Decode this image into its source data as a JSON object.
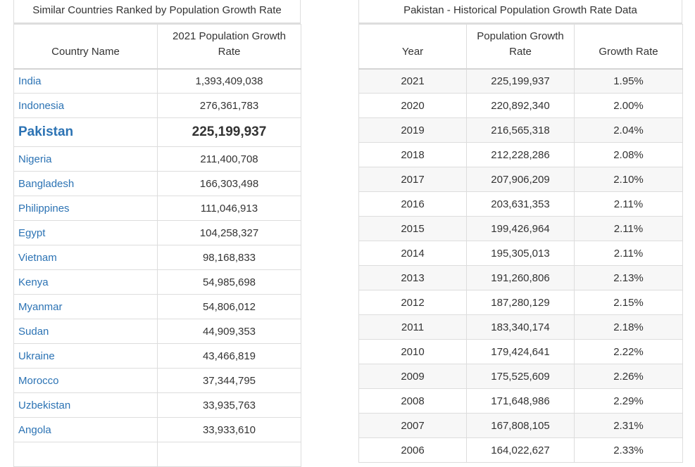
{
  "left_table": {
    "title": "Similar Countries Ranked by Population Growth Rate",
    "headers": [
      "Country Name",
      "2021 Population Growth Rate"
    ],
    "rows": [
      {
        "name": "India",
        "value": "1,393,409,038",
        "highlight": false
      },
      {
        "name": "Indonesia",
        "value": "276,361,783",
        "highlight": false
      },
      {
        "name": "Pakistan",
        "value": "225,199,937",
        "highlight": true
      },
      {
        "name": "Nigeria",
        "value": "211,400,708",
        "highlight": false
      },
      {
        "name": "Bangladesh",
        "value": "166,303,498",
        "highlight": false
      },
      {
        "name": "Philippines",
        "value": "111,046,913",
        "highlight": false
      },
      {
        "name": "Egypt",
        "value": "104,258,327",
        "highlight": false
      },
      {
        "name": "Vietnam",
        "value": "98,168,833",
        "highlight": false
      },
      {
        "name": "Kenya",
        "value": "54,985,698",
        "highlight": false
      },
      {
        "name": "Myanmar",
        "value": "54,806,012",
        "highlight": false
      },
      {
        "name": "Sudan",
        "value": "44,909,353",
        "highlight": false
      },
      {
        "name": "Ukraine",
        "value": "43,466,819",
        "highlight": false
      },
      {
        "name": "Morocco",
        "value": "37,344,795",
        "highlight": false
      },
      {
        "name": "Uzbekistan",
        "value": "33,935,763",
        "highlight": false
      },
      {
        "name": "Angola",
        "value": "33,933,610",
        "highlight": false
      },
      {
        "name": "",
        "value": "",
        "highlight": false
      }
    ]
  },
  "right_table": {
    "title": "Pakistan - Historical Population Growth Rate Data",
    "headers": [
      "Year",
      "Population Growth Rate",
      "Growth Rate"
    ],
    "rows": [
      {
        "year": "2021",
        "population": "225,199,937",
        "rate": "1.95%"
      },
      {
        "year": "2020",
        "population": "220,892,340",
        "rate": "2.00%"
      },
      {
        "year": "2019",
        "population": "216,565,318",
        "rate": "2.04%"
      },
      {
        "year": "2018",
        "population": "212,228,286",
        "rate": "2.08%"
      },
      {
        "year": "2017",
        "population": "207,906,209",
        "rate": "2.10%"
      },
      {
        "year": "2016",
        "population": "203,631,353",
        "rate": "2.11%"
      },
      {
        "year": "2015",
        "population": "199,426,964",
        "rate": "2.11%"
      },
      {
        "year": "2014",
        "population": "195,305,013",
        "rate": "2.11%"
      },
      {
        "year": "2013",
        "population": "191,260,806",
        "rate": "2.13%"
      },
      {
        "year": "2012",
        "population": "187,280,129",
        "rate": "2.15%"
      },
      {
        "year": "2011",
        "population": "183,340,174",
        "rate": "2.18%"
      },
      {
        "year": "2010",
        "population": "179,424,641",
        "rate": "2.22%"
      },
      {
        "year": "2009",
        "population": "175,525,609",
        "rate": "2.26%"
      },
      {
        "year": "2008",
        "population": "171,648,986",
        "rate": "2.29%"
      },
      {
        "year": "2007",
        "population": "167,808,105",
        "rate": "2.31%"
      },
      {
        "year": "2006",
        "population": "164,022,627",
        "rate": "2.33%"
      }
    ]
  },
  "colors": {
    "link": "#2c73b4",
    "text": "#333333",
    "border": "#dddddd",
    "stripe": "#f7f7f7"
  }
}
